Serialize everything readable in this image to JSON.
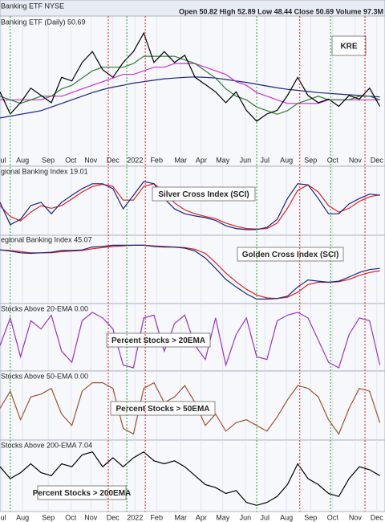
{
  "chart_data": [
    {
      "type": "line",
      "header": "Banking ETF  NYSE",
      "quote": "Open 50.82  High 52.89  Low 48.44  Close 50.69  Volume 97.3M",
      "title": "Banking ETF (Daily) 50.69",
      "annotation": "KRE",
      "xlim": [
        0,
        75
      ],
      "xticks": [
        {
          "value": 0.3,
          "label": "Jul"
        },
        {
          "value": 4.4,
          "label": "Aug"
        },
        {
          "value": 9.4,
          "label": "Sep"
        },
        {
          "value": 13.8,
          "label": "Oct"
        },
        {
          "value": 17.7,
          "label": "Nov"
        },
        {
          "value": 22,
          "label": "Dec"
        },
        {
          "value": 26.3,
          "label": "2022"
        },
        {
          "value": 30.5,
          "label": "Feb"
        },
        {
          "value": 35.2,
          "label": "Mar"
        },
        {
          "value": 39.2,
          "label": "Apr"
        },
        {
          "value": 43.4,
          "label": "May"
        },
        {
          "value": 47.8,
          "label": "Jun"
        },
        {
          "value": 51.6,
          "label": "Jul"
        },
        {
          "value": 55.8,
          "label": "Aug"
        },
        {
          "value": 60.5,
          "label": "Sep"
        },
        {
          "value": 64.8,
          "label": "Oct"
        },
        {
          "value": 69.2,
          "label": "Nov"
        },
        {
          "value": 73.4,
          "label": "Dec"
        }
      ],
      "signal_lines": [
        {
          "x": 2.0,
          "color": "#2e9e2e"
        },
        {
          "x": 21.1,
          "color": "#e02020"
        },
        {
          "x": 24.7,
          "color": "#2e9e2e"
        },
        {
          "x": 28.3,
          "color": "#e02020"
        },
        {
          "x": 50,
          "color": "#2e9e2e"
        },
        {
          "x": 58.4,
          "color": "#e02020"
        },
        {
          "x": 64.4,
          "color": "#2e9e2e"
        },
        {
          "x": 71.1,
          "color": "#e02020"
        }
      ],
      "ylim": [
        45,
        80
      ],
      "x": [
        0,
        2,
        4,
        6,
        8,
        10,
        12,
        14,
        16,
        18,
        20,
        22,
        24,
        26,
        28,
        30,
        32,
        34,
        36,
        38,
        40,
        42,
        44,
        46,
        48,
        50,
        52,
        54,
        56,
        58,
        60,
        62,
        64,
        66,
        68,
        70,
        72,
        74
      ],
      "series": [
        {
          "color": "#1a237e",
          "values": [
            55,
            55.5,
            56,
            56.5,
            57,
            58,
            59,
            60,
            61,
            62,
            62.8,
            63.5,
            64,
            64.6,
            65,
            65.4,
            65.8,
            66,
            66.2,
            66.3,
            66.2,
            66,
            65.6,
            65.2,
            64.8,
            64.3,
            63.8,
            63.3,
            62.9,
            62.6,
            62.3,
            62,
            61.8,
            61.6,
            61.4,
            61.2,
            61,
            60.8
          ]
        },
        {
          "color": "#cc33cc",
          "values": [
            60,
            60,
            60,
            60,
            60,
            61,
            61,
            62,
            63,
            64,
            65,
            66,
            67,
            67,
            68,
            69,
            69,
            70,
            70,
            70,
            69,
            68,
            67,
            65,
            64,
            62,
            61,
            60,
            59,
            59,
            59,
            59,
            60,
            60,
            60,
            60,
            60,
            60
          ]
        },
        {
          "color": "#2e7d32",
          "values": [
            61,
            60,
            59,
            60,
            61,
            61,
            63,
            64,
            66,
            68,
            69,
            69,
            69,
            70,
            72,
            72,
            72,
            72,
            71,
            70,
            68,
            66,
            63,
            61,
            60,
            58,
            57,
            56,
            57,
            59,
            60,
            61,
            60,
            60,
            60,
            61,
            61,
            60
          ]
        },
        {
          "color": "#000000",
          "values": [
            62.2,
            56.1,
            59.2,
            63.2,
            61.2,
            59.2,
            66.2,
            65.2,
            70.3,
            73.3,
            68.3,
            66.2,
            70.3,
            73.3,
            78.4,
            70.3,
            73.3,
            70.3,
            72.3,
            66.2,
            64.2,
            62.2,
            59.2,
            62.2,
            57.1,
            54.1,
            56.1,
            57.1,
            61.2,
            66.2,
            61.2,
            59.2,
            60.2,
            58.2,
            61.2,
            60.2,
            63.2,
            58.2
          ]
        }
      ]
    },
    {
      "type": "line",
      "title": "gional Banking Index 19.01",
      "annotation": "Silver Cross Index (SCI)",
      "xlim": [
        0,
        75
      ],
      "ylim": [
        0,
        100
      ],
      "x": [
        0,
        2,
        4,
        6,
        8,
        10,
        12,
        14,
        16,
        18,
        20,
        22,
        24,
        26,
        28,
        30,
        32,
        34,
        36,
        38,
        40,
        42,
        44,
        46,
        48,
        50,
        52,
        54,
        56,
        58,
        60,
        62,
        64,
        66,
        68,
        70,
        72,
        74
      ],
      "series": [
        {
          "color": "#e02020",
          "values": [
            50,
            30,
            22,
            38,
            50,
            45,
            50,
            62,
            75,
            85,
            89,
            85,
            60,
            60,
            85,
            90,
            75,
            55,
            42,
            35,
            30,
            26,
            18,
            12,
            8,
            7,
            8,
            18,
            45,
            78,
            88,
            75,
            50,
            38,
            45,
            58,
            66,
            70
          ]
        },
        {
          "color": "#1a237e",
          "values": [
            56,
            15,
            25,
            50,
            56,
            35,
            56,
            69,
            81,
            90,
            90,
            81,
            44,
            69,
            94,
            90,
            63,
            44,
            35,
            31,
            28,
            23,
            13,
            8,
            6,
            6,
            10,
            25,
            63,
            90,
            88,
            63,
            35,
            35,
            53,
            63,
            71,
            69
          ]
        }
      ]
    },
    {
      "type": "line",
      "title": "egional Banking Index 45.07",
      "annotation": "Golden Cross Index (SCI)",
      "xlim": [
        0,
        75
      ],
      "ylim": [
        0,
        100
      ],
      "x": [
        0,
        2,
        4,
        6,
        8,
        10,
        12,
        14,
        16,
        18,
        20,
        22,
        24,
        26,
        28,
        30,
        32,
        34,
        36,
        38,
        40,
        42,
        44,
        46,
        48,
        50,
        52,
        54,
        56,
        58,
        60,
        62,
        64,
        66,
        68,
        70,
        72,
        74
      ],
      "series": [
        {
          "color": "#e02020",
          "values": [
            90,
            89,
            87,
            85,
            85,
            85,
            87,
            88,
            89,
            92,
            94,
            96,
            97,
            98,
            98,
            97,
            96,
            95,
            94,
            91,
            84,
            68,
            50,
            35,
            22,
            12,
            7,
            6,
            8,
            17,
            30,
            34,
            34,
            35,
            39,
            46,
            51,
            54
          ]
        },
        {
          "color": "#1a237e",
          "values": [
            90,
            88,
            85,
            84,
            85,
            86,
            89,
            89,
            90,
            95,
            96,
            98,
            98,
            98,
            98,
            96,
            95,
            95,
            93,
            88,
            76,
            58,
            39,
            26,
            14,
            5,
            5,
            6,
            10,
            26,
            38,
            36,
            34,
            36,
            43,
            51,
            56,
            58
          ]
        }
      ]
    },
    {
      "type": "line",
      "title": "Stocks Above 20-EMA 0.00",
      "annotation": "Percent Stocks > 20EMA",
      "xlim": [
        0,
        75
      ],
      "ylim": [
        0,
        100
      ],
      "x": [
        0,
        2,
        4,
        6,
        8,
        10,
        12,
        14,
        16,
        18,
        20,
        22,
        24,
        26,
        28,
        30,
        32,
        34,
        36,
        38,
        40,
        42,
        44,
        46,
        48,
        50,
        52,
        54,
        56,
        58,
        60,
        62,
        64,
        66,
        68,
        70,
        72,
        74
      ],
      "series": [
        {
          "color": "#9933cc",
          "values": [
            40,
            90,
            20,
            85,
            70,
            95,
            30,
            10,
            85,
            100,
            90,
            70,
            5,
            0,
            90,
            95,
            30,
            80,
            95,
            40,
            15,
            90,
            5,
            60,
            90,
            20,
            15,
            85,
            95,
            100,
            90,
            50,
            10,
            0,
            60,
            90,
            85,
            5
          ]
        }
      ]
    },
    {
      "type": "line",
      "title": "Stocks Above 50-EMA 0.00",
      "annotation": "Percent Stocks > 50EMA",
      "xlim": [
        0,
        75
      ],
      "ylim": [
        0,
        100
      ],
      "x": [
        0,
        2,
        4,
        6,
        8,
        10,
        12,
        14,
        16,
        18,
        20,
        22,
        24,
        26,
        28,
        30,
        32,
        34,
        36,
        38,
        40,
        42,
        44,
        46,
        48,
        50,
        52,
        54,
        56,
        58,
        60,
        62,
        64,
        66,
        68,
        70,
        72,
        74
      ],
      "series": [
        {
          "color": "#a0522d",
          "values": [
            50,
            80,
            30,
            70,
            75,
            85,
            40,
            20,
            80,
            95,
            95,
            85,
            15,
            5,
            85,
            95,
            60,
            70,
            90,
            60,
            20,
            40,
            10,
            25,
            30,
            20,
            10,
            35,
            65,
            90,
            85,
            70,
            30,
            5,
            50,
            85,
            80,
            25
          ]
        }
      ]
    },
    {
      "type": "line",
      "title": "Stocks Above 200-EMA 7.04",
      "annotation": "Percent Stocks > 200EMA",
      "xlim": [
        0,
        75
      ],
      "ylim": [
        0,
        100
      ],
      "xticks": [
        {
          "value": 0.3,
          "label": "Jul"
        },
        {
          "value": 4.4,
          "label": "Aug"
        },
        {
          "value": 9.4,
          "label": "Sep"
        },
        {
          "value": 13.8,
          "label": "Oct"
        },
        {
          "value": 17.7,
          "label": "Nov"
        },
        {
          "value": 22,
          "label": "Dec"
        },
        {
          "value": 26.3,
          "label": "2022"
        },
        {
          "value": 30.5,
          "label": "Feb"
        },
        {
          "value": 35.2,
          "label": "Mar"
        },
        {
          "value": 39.2,
          "label": "Apr"
        },
        {
          "value": 43.4,
          "label": "May"
        },
        {
          "value": 47.8,
          "label": "Jun"
        },
        {
          "value": 51.6,
          "label": "Jul"
        },
        {
          "value": 55.8,
          "label": "Aug"
        },
        {
          "value": 60.5,
          "label": "Sep"
        },
        {
          "value": 64.8,
          "label": "Oct"
        },
        {
          "value": 69.2,
          "label": "Nov"
        },
        {
          "value": 73.4,
          "label": "Dec"
        }
      ],
      "x": [
        0,
        2,
        4,
        6,
        8,
        10,
        12,
        14,
        16,
        18,
        20,
        22,
        24,
        26,
        28,
        30,
        32,
        34,
        36,
        38,
        40,
        42,
        44,
        46,
        48,
        50,
        52,
        54,
        56,
        58,
        60,
        62,
        64,
        66,
        68,
        70,
        72,
        74
      ],
      "series": [
        {
          "color": "#000000",
          "values": [
            70,
            50,
            60,
            75,
            60,
            55,
            75,
            70,
            90,
            95,
            70,
            85,
            70,
            85,
            95,
            80,
            75,
            80,
            70,
            55,
            40,
            35,
            25,
            30,
            10,
            5,
            10,
            20,
            40,
            75,
            50,
            40,
            25,
            20,
            50,
            70,
            65,
            55
          ]
        }
      ]
    }
  ]
}
